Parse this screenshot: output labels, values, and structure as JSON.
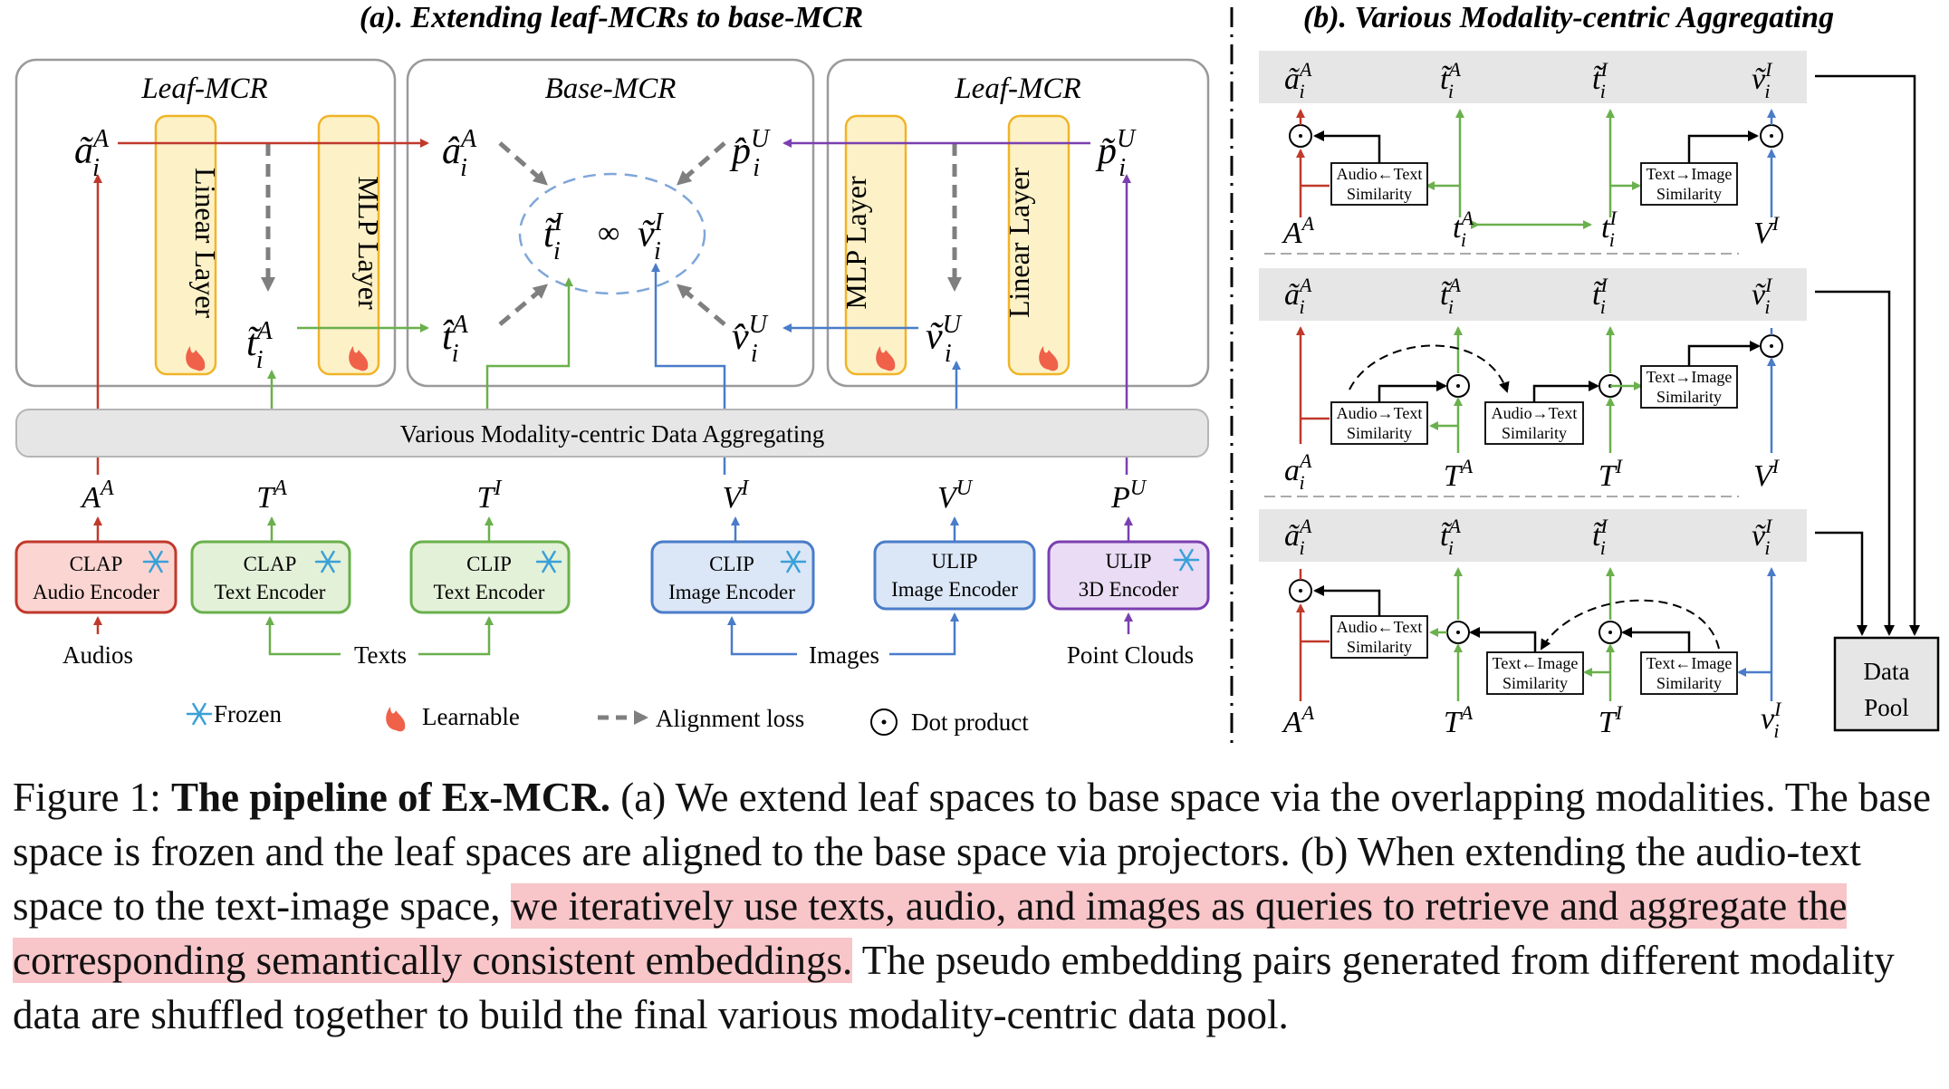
{
  "panel_a": {
    "title": "(a). Extending leaf-MCRs to base-MCR",
    "leaf_left": "Leaf-MCR",
    "base": "Base-MCR",
    "leaf_right": "Leaf-MCR",
    "linear_layer": "Linear Layer",
    "mlp_layer": "MLP Layer",
    "aggregating_bar": "Various Modality-centric Data Aggregating",
    "encoders": [
      {
        "line1": "CLAP",
        "line2": "Audio Encoder",
        "color": "#c0392b",
        "fill": "#fbd5d2"
      },
      {
        "line1": "CLAP",
        "line2": "Text Encoder",
        "color": "#6ab04c",
        "fill": "#e3f1d8"
      },
      {
        "line1": "CLIP",
        "line2": "Text Encoder",
        "color": "#6ab04c",
        "fill": "#e3f1d8"
      },
      {
        "line1": "CLIP",
        "line2": "Image Encoder",
        "color": "#4a7cc9",
        "fill": "#dbe6f6"
      },
      {
        "line1": "ULIP",
        "line2": "Image Encoder",
        "color": "#4a7cc9",
        "fill": "#dbe6f6"
      },
      {
        "line1": "ULIP",
        "line2": "3D Encoder",
        "color": "#7a3fb0",
        "fill": "#e9dcf4"
      }
    ],
    "inputs": {
      "audios": "Audios",
      "texts": "Texts",
      "images": "Images",
      "point_clouds": "Point Clouds"
    },
    "legend": {
      "frozen": "Frozen",
      "learnable": "Learnable",
      "alignment": "Alignment loss",
      "dot": "Dot product"
    }
  },
  "panel_b": {
    "title": "(b). Various Modality-centric Aggregating",
    "audio_text_sim": "Audio←Text",
    "audio_text_sim_fwd": "Audio→Text",
    "text_image_sim": "Text→Image",
    "text_image_sim_back": "Text←Image",
    "similarity": "Similarity",
    "data_pool_1": "Data",
    "data_pool_2": "Pool"
  },
  "colors": {
    "audio": "#c0392b",
    "text": "#6ab04c",
    "image": "#4a7cc9",
    "point": "#7a3fb0",
    "layer_fill": "#fdf1c7",
    "layer_stroke": "#f0b429",
    "gray": "#7f7f7f",
    "highlight": "#f8c5c9"
  },
  "caption": {
    "prefix": "Figure 1: ",
    "bold": "The pipeline of Ex-MCR.",
    "part1": " (a) We extend leaf spaces to base space via the overlapping modalities. The base space is frozen and the leaf spaces are aligned to the base space via projectors. (b) When extending the audio-text space to the text-image space, ",
    "highlight": "we iteratively use texts, audio, and images as queries to retrieve and aggregate the corresponding semantically consistent embeddings.",
    "part2": " The pseudo embedding pairs generated from different modality data are shuffled together to build the final various modality-centric data pool."
  }
}
